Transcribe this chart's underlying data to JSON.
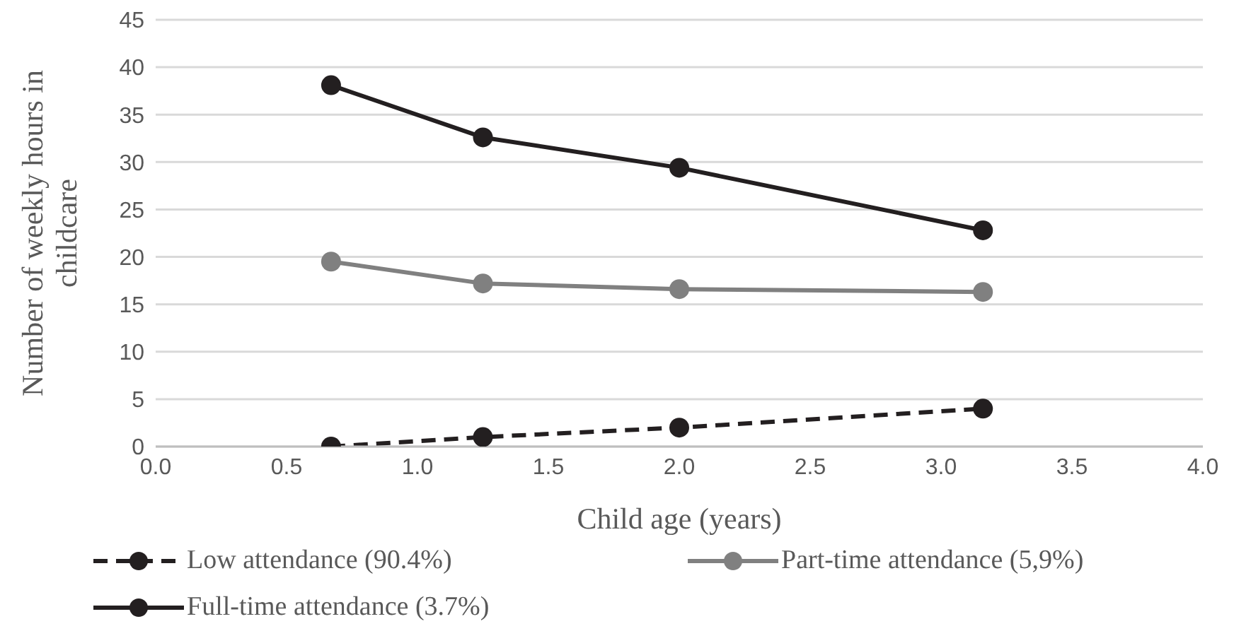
{
  "chart_data": {
    "type": "line",
    "xlabel": "Child age (years)",
    "ylabel": "Number of weekly hours in childcare",
    "x": [
      0.67,
      1.25,
      2.0,
      3.16
    ],
    "series": [
      {
        "name": "Low attendance (90.4%)",
        "color": "#231f20",
        "values": [
          0,
          1.0,
          2.0,
          4.0
        ],
        "line_style": "dashed"
      },
      {
        "name": "Part-time attendance (5,9%)",
        "color": "#808080",
        "values": [
          19.5,
          17.2,
          16.6,
          16.3
        ],
        "line_style": "solid"
      },
      {
        "name": "Full-time attendance (3.7%)",
        "color": "#231f20",
        "values": [
          38.1,
          32.6,
          29.4,
          22.8
        ],
        "line_style": "solid"
      }
    ],
    "xlim": [
      0,
      4
    ],
    "xticks": [
      {
        "value": 0,
        "label": "0.0"
      },
      {
        "value": 0.5,
        "label": "0.5"
      },
      {
        "value": 1,
        "label": "1.0"
      },
      {
        "value": 1.5,
        "label": "1.5"
      },
      {
        "value": 2,
        "label": "2.0"
      },
      {
        "value": 2.5,
        "label": "2.5"
      },
      {
        "value": 3,
        "label": "3.0"
      },
      {
        "value": 3.5,
        "label": "3.5"
      },
      {
        "value": 4,
        "label": "4.0"
      }
    ],
    "ylim": [
      0,
      45
    ],
    "yticks": [
      0,
      5,
      10,
      15,
      20,
      25,
      30,
      35,
      40,
      45
    ],
    "grid": "y",
    "legend": "bottom",
    "marker": "circle"
  }
}
